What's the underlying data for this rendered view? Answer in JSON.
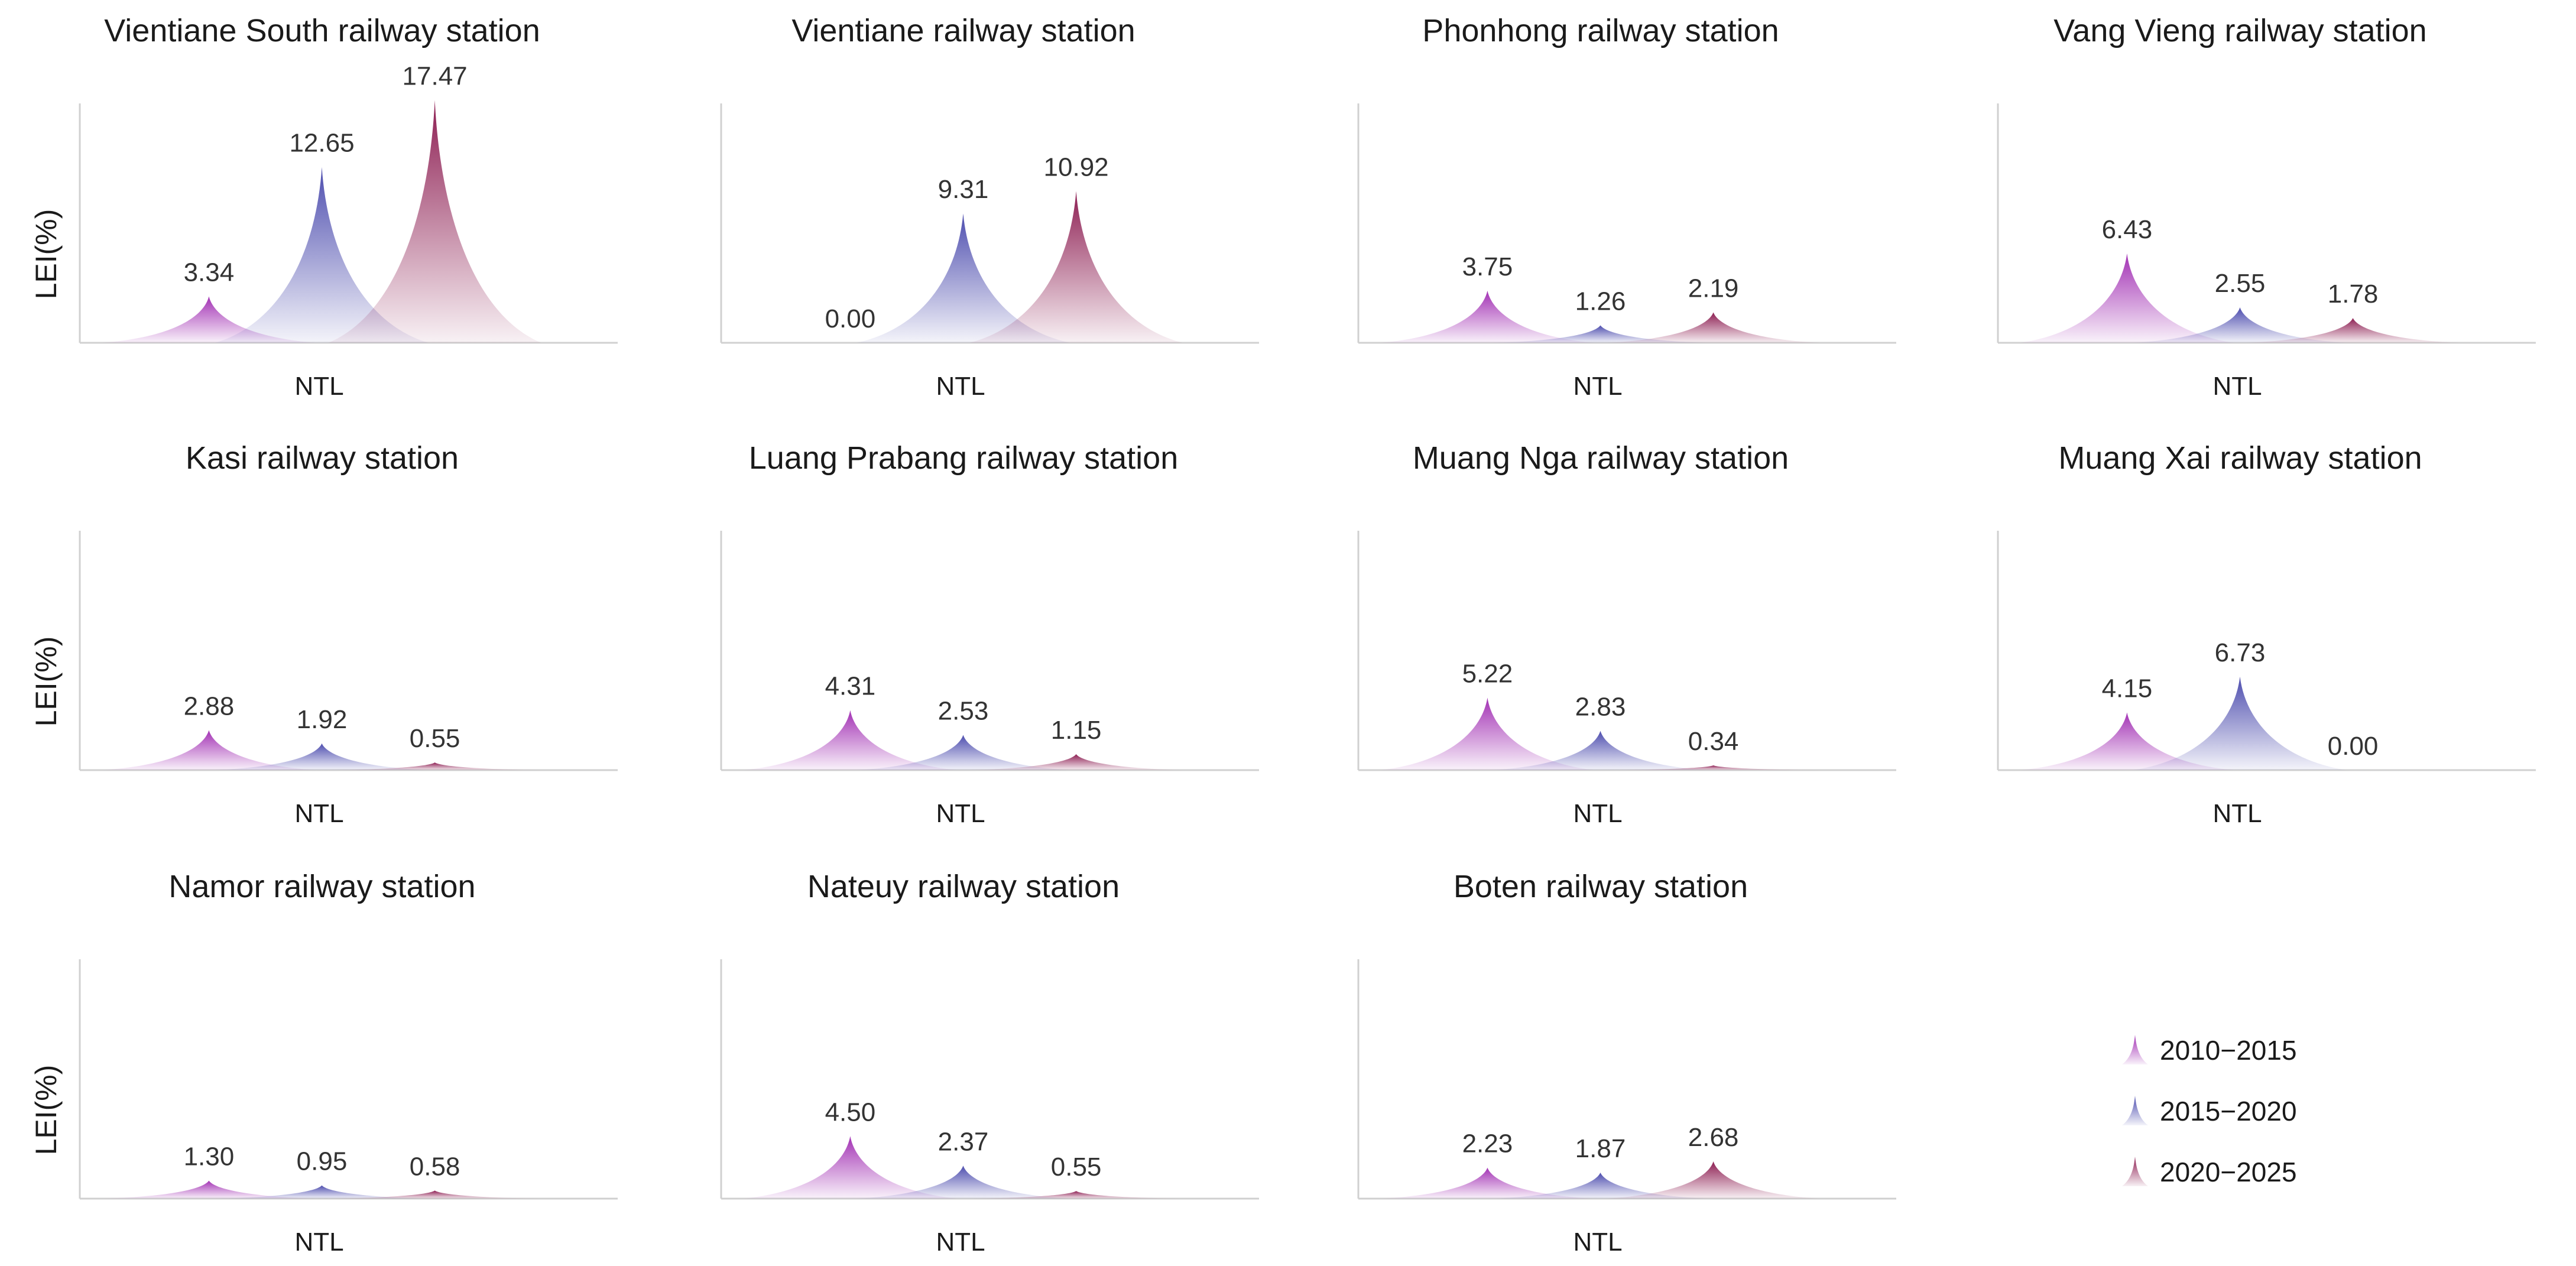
{
  "chart_data": {
    "type": "area",
    "ylabel": "LEI(%)",
    "xlabel": "NTL",
    "ylim": [
      0,
      18
    ],
    "series_names": [
      "2010−2015",
      "2015−2020",
      "2020−2025"
    ],
    "colors": [
      "#a12eb3",
      "#4a4aad",
      "#8b1a4f"
    ],
    "panels": [
      {
        "title": "Vientiane South railway station",
        "values": [
          3.34,
          12.65,
          17.47
        ],
        "labels": [
          "3.34",
          "12.65",
          "17.47"
        ]
      },
      {
        "title": "Vientiane railway station",
        "values": [
          0.0,
          9.31,
          10.92
        ],
        "labels": [
          "0.00",
          "9.31",
          "10.92"
        ]
      },
      {
        "title": "Phonhong railway station",
        "values": [
          3.75,
          1.26,
          2.19
        ],
        "labels": [
          "3.75",
          "1.26",
          "2.19"
        ]
      },
      {
        "title": "Vang Vieng railway station",
        "values": [
          6.43,
          2.55,
          1.78
        ],
        "labels": [
          "6.43",
          "2.55",
          "1.78"
        ]
      },
      {
        "title": "Kasi railway station",
        "values": [
          2.88,
          1.92,
          0.55
        ],
        "labels": [
          "2.88",
          "1.92",
          "0.55"
        ]
      },
      {
        "title": "Luang Prabang railway station",
        "values": [
          4.31,
          2.53,
          1.15
        ],
        "labels": [
          "4.31",
          "2.53",
          "1.15"
        ]
      },
      {
        "title": "Muang Nga railway station",
        "values": [
          5.22,
          2.83,
          0.34
        ],
        "labels": [
          "5.22",
          "2.83",
          "0.34"
        ]
      },
      {
        "title": "Muang Xai railway station",
        "values": [
          4.15,
          6.73,
          0.0
        ],
        "labels": [
          "4.15",
          "6.73",
          "0.00"
        ]
      },
      {
        "title": "Namor railway station",
        "values": [
          1.3,
          0.95,
          0.58
        ],
        "labels": [
          "1.30",
          "0.95",
          "0.58"
        ]
      },
      {
        "title": "Nateuy railway station",
        "values": [
          4.5,
          2.37,
          0.55
        ],
        "labels": [
          "4.50",
          "2.37",
          "0.55"
        ]
      },
      {
        "title": "Boten railway station",
        "values": [
          2.23,
          1.87,
          2.68
        ],
        "labels": [
          "2.23",
          "1.87",
          "2.68"
        ]
      }
    ]
  }
}
